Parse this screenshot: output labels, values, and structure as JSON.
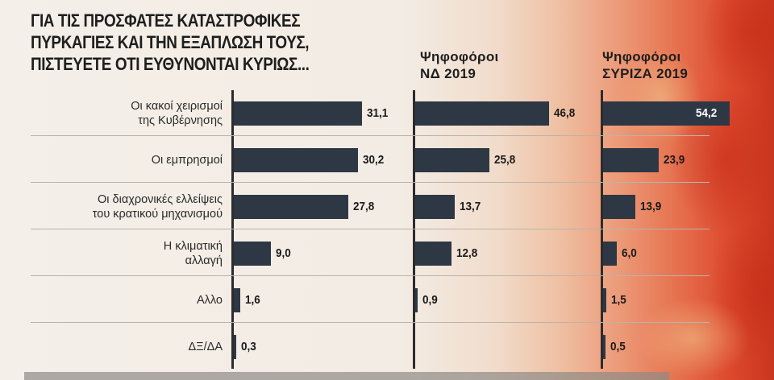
{
  "title_lines": [
    "ΓΙΑ ΤΙΣ ΠΡΟΣΦΑΤΕΣ ΚΑΤΑΣΤΡΟΦΙΚΕΣ",
    "ΠΥΡΚΑΓΙΕΣ ΚΑΙ ΤΗΝ ΕΞΑΠΛΩΣΗ ΤΟΥΣ,",
    "ΠΙΣΤΕΥΕΤΕ ΟΤΙ ΕΥΘΥΝΟΝΤΑΙ ΚΥΡΙΩΣ..."
  ],
  "colors": {
    "bar": "#2e3744",
    "accent_fire": "#dd4a2e"
  },
  "chart_data": {
    "type": "bar",
    "orientation": "horizontal",
    "title": "ΓΙΑ ΤΙΣ ΠΡΟΣΦΑΤΕΣ ΚΑΤΑΣΤΡΟΦΙΚΕΣ ΠΥΡΚΑΓΙΕΣ ΚΑΙ ΤΗΝ ΕΞΑΠΛΩΣΗ ΤΟΥΣ, ΠΙΣΤΕΥΕΤΕ ΟΤΙ ΕΥΘΥΝΟΝΤΑΙ ΚΥΡΙΩΣ...",
    "categories": [
      [
        "Οι κακοί χειρισμοί",
        "της Κυβέρνησης"
      ],
      [
        "Οι εμπρησμοί"
      ],
      [
        "Οι διαχρονικές ελλείψεις",
        "του κρατικού μηχανισμού"
      ],
      [
        "Η κλιματική",
        "αλλαγή"
      ],
      [
        "Αλλο"
      ],
      [
        "ΔΞ/ΔΑ"
      ]
    ],
    "series": [
      {
        "name": "",
        "values": [
          31.1,
          30.2,
          27.8,
          9.0,
          1.6,
          0.3
        ],
        "labels": [
          "31,1",
          "30,2",
          "27,8",
          "9,0",
          "1,6",
          "0,3"
        ]
      },
      {
        "name": "Ψηφοφόροι ΝΔ 2019",
        "name_lines": [
          "Ψηφοφόροι",
          "ΝΔ 2019"
        ],
        "values": [
          46.8,
          25.8,
          13.7,
          12.8,
          0.9,
          null
        ],
        "labels": [
          "46,8",
          "25,8",
          "13,7",
          "12,8",
          "0,9",
          ""
        ]
      },
      {
        "name": "Ψηφοφόροι ΣΥΡΙΖΑ 2019",
        "name_lines": [
          "Ψηφοφόροι",
          "ΣΥΡΙΖΑ 2019"
        ],
        "values": [
          54.2,
          23.9,
          13.9,
          6.0,
          1.5,
          0.5
        ],
        "labels": [
          "54,2",
          "23,9",
          "13,9",
          "6,0",
          "1,5",
          "0,5"
        ]
      }
    ],
    "xlim": [
      0,
      56
    ],
    "legend": "column-headers"
  }
}
